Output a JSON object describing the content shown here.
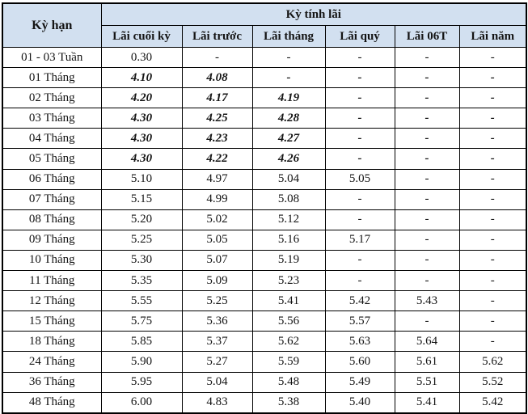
{
  "table": {
    "corner_header": "Kỳ hạn",
    "group_header": "Kỳ tính lãi",
    "columns": [
      "Lãi cuối kỳ",
      "Lãi trước",
      "Lãi tháng",
      "Lãi quý",
      "Lãi 06T",
      "Lãi năm"
    ],
    "rows": [
      {
        "term": "01 - 03 Tuần",
        "values": [
          "0.30",
          "-",
          "-",
          "-",
          "-",
          "-"
        ],
        "emphasis": false
      },
      {
        "term": "01 Tháng",
        "values": [
          "4.10",
          "4.08",
          "-",
          "-",
          "-",
          "-"
        ],
        "emphasis": true
      },
      {
        "term": "02 Tháng",
        "values": [
          "4.20",
          "4.17",
          "4.19",
          "-",
          "-",
          "-"
        ],
        "emphasis": true
      },
      {
        "term": "03 Tháng",
        "values": [
          "4.30",
          "4.25",
          "4.28",
          "-",
          "-",
          "-"
        ],
        "emphasis": true
      },
      {
        "term": "04 Tháng",
        "values": [
          "4.30",
          "4.23",
          "4.27",
          "-",
          "-",
          "-"
        ],
        "emphasis": true
      },
      {
        "term": "05 Tháng",
        "values": [
          "4.30",
          "4.22",
          "4.26",
          "-",
          "-",
          "-"
        ],
        "emphasis": true
      },
      {
        "term": "06 Tháng",
        "values": [
          "5.10",
          "4.97",
          "5.04",
          "5.05",
          "-",
          "-"
        ],
        "emphasis": false
      },
      {
        "term": "07 Tháng",
        "values": [
          "5.15",
          "4.99",
          "5.08",
          "-",
          "-",
          "-"
        ],
        "emphasis": false
      },
      {
        "term": "08 Tháng",
        "values": [
          "5.20",
          "5.02",
          "5.12",
          "-",
          "-",
          "-"
        ],
        "emphasis": false
      },
      {
        "term": "09 Tháng",
        "values": [
          "5.25",
          "5.05",
          "5.16",
          "5.17",
          "-",
          "-"
        ],
        "emphasis": false
      },
      {
        "term": "10 Tháng",
        "values": [
          "5.30",
          "5.07",
          "5.19",
          "-",
          "-",
          "-"
        ],
        "emphasis": false
      },
      {
        "term": "11 Tháng",
        "values": [
          "5.35",
          "5.09",
          "5.23",
          "-",
          "-",
          "-"
        ],
        "emphasis": false
      },
      {
        "term": "12 Tháng",
        "values": [
          "5.55",
          "5.25",
          "5.41",
          "5.42",
          "5.43",
          "-"
        ],
        "emphasis": false
      },
      {
        "term": "15 Tháng",
        "values": [
          "5.75",
          "5.36",
          "5.56",
          "5.57",
          "-",
          "-"
        ],
        "emphasis": false
      },
      {
        "term": "18 Tháng",
        "values": [
          "5.85",
          "5.37",
          "5.62",
          "5.63",
          "5.64",
          "-"
        ],
        "emphasis": false
      },
      {
        "term": "24 Tháng",
        "values": [
          "5.90",
          "5.27",
          "5.59",
          "5.60",
          "5.61",
          "5.62"
        ],
        "emphasis": false
      },
      {
        "term": "36 Tháng",
        "values": [
          "5.95",
          "5.04",
          "5.48",
          "5.49",
          "5.51",
          "5.52"
        ],
        "emphasis": false
      },
      {
        "term": "48 Tháng",
        "values": [
          "6.00",
          "4.83",
          "5.38",
          "5.40",
          "5.41",
          "5.42"
        ],
        "emphasis": false
      }
    ],
    "colors": {
      "header_bg": "#d2e0f0",
      "border": "#000000",
      "text": "#141414"
    }
  }
}
